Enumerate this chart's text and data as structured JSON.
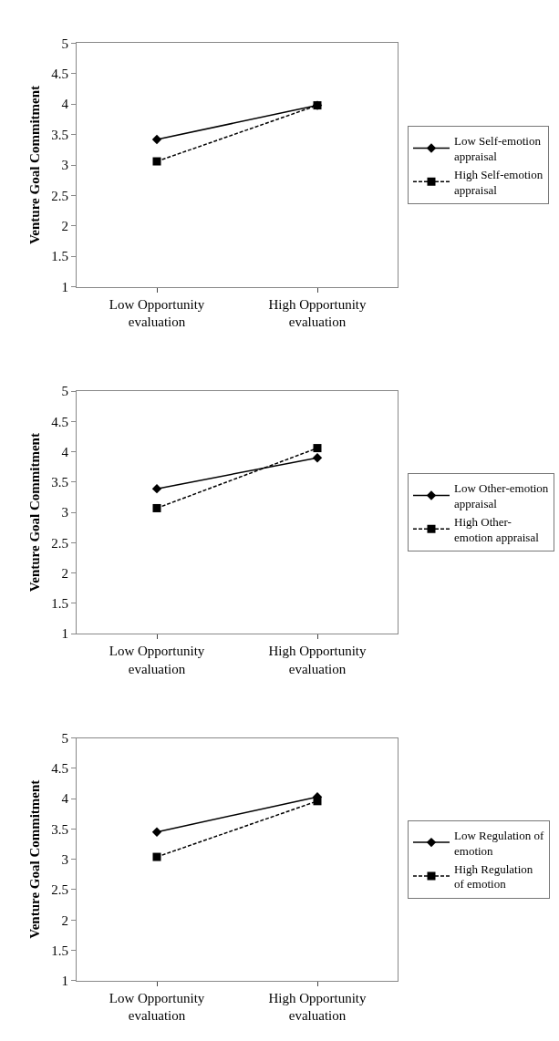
{
  "chart_data": [
    {
      "type": "line",
      "ylabel": "Venture Goal Commitment",
      "categories": [
        "Low Opportunity evaluation",
        "High Opportunity evaluation"
      ],
      "ylim": [
        1,
        5
      ],
      "yticks": [
        1,
        1.5,
        2,
        2.5,
        3,
        3.5,
        4,
        4.5,
        5
      ],
      "legend": "right",
      "series": [
        {
          "name": "Low Self-emotion appraisal",
          "color": "#000000",
          "marker": "diamond",
          "line_style": "solid",
          "values": [
            3.42,
            3.98
          ]
        },
        {
          "name": "High Self-emotion appraisal",
          "color": "#000000",
          "marker": "square",
          "line_style": "dashed",
          "values": [
            3.06,
            3.98
          ]
        }
      ]
    },
    {
      "type": "line",
      "ylabel": "Venture Goal Commitment",
      "categories": [
        "Low Opportunity evaluation",
        "High Opportunity evaluation"
      ],
      "ylim": [
        1,
        5
      ],
      "yticks": [
        1,
        1.5,
        2,
        2.5,
        3,
        3.5,
        4,
        4.5,
        5
      ],
      "legend": "right",
      "series": [
        {
          "name": "Low Other-emotion appraisal",
          "color": "#000000",
          "marker": "diamond",
          "line_style": "solid",
          "values": [
            3.39,
            3.9
          ]
        },
        {
          "name": "High Other-emotion appraisal",
          "color": "#000000",
          "marker": "square",
          "line_style": "dashed",
          "values": [
            3.07,
            4.06
          ]
        }
      ]
    },
    {
      "type": "line",
      "ylabel": "Venture Goal Commitment",
      "categories": [
        "Low Opportunity evaluation",
        "High Opportunity evaluation"
      ],
      "ylim": [
        1,
        5
      ],
      "yticks": [
        1,
        1.5,
        2,
        2.5,
        3,
        3.5,
        4,
        4.5,
        5
      ],
      "legend": "right",
      "series": [
        {
          "name": "Low Regulation of emotion",
          "color": "#000000",
          "marker": "diamond",
          "line_style": "solid",
          "values": [
            3.45,
            4.03
          ]
        },
        {
          "name": "High Regulation of emotion",
          "color": "#000000",
          "marker": "square",
          "line_style": "dashed",
          "values": [
            3.04,
            3.96
          ]
        }
      ]
    }
  ]
}
